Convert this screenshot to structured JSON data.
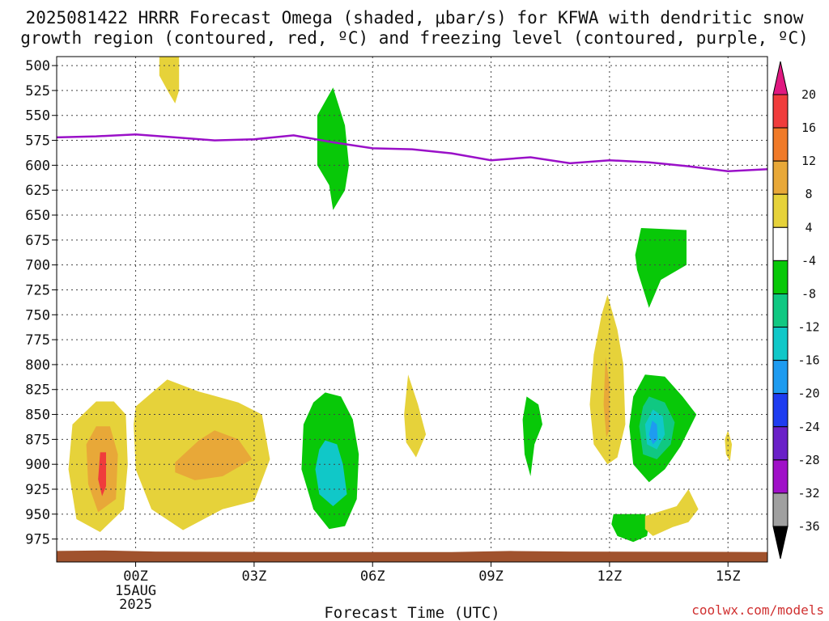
{
  "chart_data": {
    "type": "contour",
    "title_line1": "2025081422 HRRR Forecast Omega (shaded, μbar/s) for KFWA with dendritic snow",
    "title_line2": "growth region (contoured, red, ºC) and freezing level (contoured, purple, ºC)",
    "xlabel": "Forecast Time (UTC)",
    "credit": "coolwx.com/models",
    "x_range_hours": [
      -2,
      16
    ],
    "x_ticks": [
      {
        "hour": 0,
        "label": "00Z",
        "sublabels": [
          "15AUG",
          "2025"
        ]
      },
      {
        "hour": 3,
        "label": "03Z",
        "sublabels": []
      },
      {
        "hour": 6,
        "label": "06Z",
        "sublabels": []
      },
      {
        "hour": 9,
        "label": "09Z",
        "sublabels": []
      },
      {
        "hour": 12,
        "label": "12Z",
        "sublabels": []
      },
      {
        "hour": 15,
        "label": "15Z",
        "sublabels": []
      }
    ],
    "y_range_hpa": [
      491,
      998
    ],
    "y_ticks": [
      500,
      525,
      550,
      575,
      600,
      625,
      650,
      675,
      700,
      725,
      750,
      775,
      800,
      825,
      850,
      875,
      900,
      925,
      950,
      975
    ],
    "grid": true,
    "colorbar": {
      "labels": [
        "20",
        "16",
        "12",
        "8",
        "4",
        "-4",
        "-8",
        "-12",
        "-16",
        "-20",
        "-24",
        "-28",
        "-32",
        "-36"
      ],
      "colors": [
        "#f03c3c",
        "#f07a28",
        "#e8a838",
        "#e6d23a",
        "#ffffff",
        "#08c808",
        "#10c882",
        "#10c8c8",
        "#1e9bf0",
        "#1e3cf0",
        "#6a20c8",
        "#a010c8",
        "#a0a0a0"
      ],
      "top_arrow_color": "#e01880",
      "bottom_arrow_color": "#000000"
    },
    "freezing_level": {
      "color": "#9a10c8",
      "hours": [
        -2,
        -1,
        0,
        1,
        2,
        3,
        4,
        5,
        6,
        7,
        8,
        9,
        10,
        11,
        12,
        13,
        14,
        15,
        16
      ],
      "pressure_hpa": [
        572,
        571,
        569,
        572,
        575,
        574,
        570,
        577,
        583,
        584,
        588,
        595,
        592,
        598,
        595,
        597,
        601,
        606,
        604
      ]
    },
    "terrain_color": "#a0522d",
    "omega_regions": [
      {
        "color_index": 3,
        "points": [
          [
            0.6,
            491
          ],
          [
            1.1,
            491
          ],
          [
            1.1,
            525
          ],
          [
            1.0,
            538
          ],
          [
            0.85,
            528
          ],
          [
            0.6,
            510
          ]
        ]
      },
      {
        "color_index": 3,
        "points": [
          [
            -1.0,
            837
          ],
          [
            -0.55,
            837
          ],
          [
            -0.25,
            850
          ],
          [
            -0.2,
            900
          ],
          [
            -0.3,
            945
          ],
          [
            -0.9,
            968
          ],
          [
            -1.5,
            955
          ],
          [
            -1.7,
            905
          ],
          [
            -1.6,
            860
          ]
        ]
      },
      {
        "color_index": 2,
        "points": [
          [
            -1.0,
            862
          ],
          [
            -0.65,
            862
          ],
          [
            -0.45,
            890
          ],
          [
            -0.5,
            935
          ],
          [
            -0.95,
            948
          ],
          [
            -1.2,
            920
          ],
          [
            -1.25,
            880
          ]
        ]
      },
      {
        "color_index": 0,
        "points": [
          [
            -0.9,
            888
          ],
          [
            -0.75,
            888
          ],
          [
            -0.75,
            922
          ],
          [
            -0.85,
            932
          ],
          [
            -0.95,
            915
          ]
        ]
      },
      {
        "color_index": 3,
        "points": [
          [
            0.0,
            842
          ],
          [
            0.8,
            815
          ],
          [
            1.6,
            827
          ],
          [
            2.6,
            838
          ],
          [
            3.2,
            850
          ],
          [
            3.4,
            895
          ],
          [
            3.0,
            937
          ],
          [
            2.2,
            945
          ],
          [
            1.2,
            966
          ],
          [
            0.4,
            945
          ],
          [
            0.0,
            905
          ],
          [
            -0.05,
            860
          ]
        ]
      },
      {
        "color_index": 2,
        "points": [
          [
            1.0,
            898
          ],
          [
            1.6,
            876
          ],
          [
            2.0,
            866
          ],
          [
            2.6,
            875
          ],
          [
            2.95,
            895
          ],
          [
            2.2,
            912
          ],
          [
            1.5,
            916
          ],
          [
            1.0,
            908
          ]
        ]
      },
      {
        "color_index": 5,
        "points": [
          [
            5.0,
            522
          ],
          [
            5.3,
            560
          ],
          [
            5.4,
            600
          ],
          [
            5.3,
            625
          ],
          [
            5.0,
            645
          ],
          [
            4.9,
            620
          ],
          [
            4.6,
            600
          ],
          [
            4.6,
            550
          ]
        ]
      },
      {
        "color_index": 5,
        "points": [
          [
            4.8,
            828
          ],
          [
            5.2,
            832
          ],
          [
            5.5,
            855
          ],
          [
            5.65,
            890
          ],
          [
            5.6,
            935
          ],
          [
            5.3,
            962
          ],
          [
            4.9,
            965
          ],
          [
            4.5,
            945
          ],
          [
            4.2,
            905
          ],
          [
            4.25,
            860
          ],
          [
            4.5,
            838
          ]
        ]
      },
      {
        "color_index": 7,
        "points": [
          [
            4.8,
            876
          ],
          [
            5.1,
            880
          ],
          [
            5.25,
            900
          ],
          [
            5.35,
            930
          ],
          [
            5.0,
            942
          ],
          [
            4.65,
            930
          ],
          [
            4.55,
            905
          ],
          [
            4.65,
            885
          ]
        ]
      },
      {
        "color_index": 3,
        "points": [
          [
            6.9,
            810
          ],
          [
            7.15,
            840
          ],
          [
            7.35,
            870
          ],
          [
            7.1,
            893
          ],
          [
            6.85,
            878
          ],
          [
            6.8,
            850
          ]
        ]
      },
      {
        "color_index": 5,
        "points": [
          [
            9.9,
            832
          ],
          [
            10.2,
            840
          ],
          [
            10.3,
            860
          ],
          [
            10.1,
            880
          ],
          [
            10.0,
            912
          ],
          [
            9.85,
            890
          ],
          [
            9.8,
            855
          ]
        ]
      },
      {
        "color_index": 3,
        "points": [
          [
            11.95,
            730
          ],
          [
            12.2,
            765
          ],
          [
            12.35,
            800
          ],
          [
            12.4,
            860
          ],
          [
            12.2,
            893
          ],
          [
            11.95,
            900
          ],
          [
            11.6,
            880
          ],
          [
            11.5,
            840
          ],
          [
            11.6,
            790
          ],
          [
            11.8,
            750
          ]
        ]
      },
      {
        "color_index": 2,
        "points": [
          [
            11.9,
            792
          ],
          [
            12.0,
            820
          ],
          [
            12.0,
            865
          ],
          [
            11.92,
            873
          ],
          [
            11.85,
            840
          ]
        ]
      },
      {
        "color_index": 5,
        "points": [
          [
            12.8,
            663
          ],
          [
            13.95,
            665
          ],
          [
            13.95,
            700
          ],
          [
            13.3,
            715
          ],
          [
            13.0,
            743
          ],
          [
            12.7,
            705
          ],
          [
            12.65,
            690
          ]
        ]
      },
      {
        "color_index": 5,
        "points": [
          [
            12.9,
            810
          ],
          [
            13.4,
            812
          ],
          [
            13.85,
            832
          ],
          [
            14.2,
            850
          ],
          [
            13.8,
            882
          ],
          [
            13.4,
            905
          ],
          [
            13.0,
            918
          ],
          [
            12.6,
            900
          ],
          [
            12.5,
            862
          ],
          [
            12.6,
            832
          ]
        ]
      },
      {
        "color_index": 6,
        "points": [
          [
            13.0,
            832
          ],
          [
            13.4,
            838
          ],
          [
            13.65,
            858
          ],
          [
            13.55,
            880
          ],
          [
            13.2,
            895
          ],
          [
            12.85,
            890
          ],
          [
            12.75,
            862
          ],
          [
            12.85,
            842
          ]
        ]
      },
      {
        "color_index": 7,
        "points": [
          [
            13.1,
            845
          ],
          [
            13.35,
            852
          ],
          [
            13.4,
            870
          ],
          [
            13.2,
            885
          ],
          [
            12.95,
            880
          ],
          [
            12.9,
            860
          ]
        ]
      },
      {
        "color_index": 8,
        "points": [
          [
            13.08,
            856
          ],
          [
            13.2,
            860
          ],
          [
            13.22,
            875
          ],
          [
            13.1,
            880
          ],
          [
            13.0,
            870
          ]
        ]
      },
      {
        "color_index": 5,
        "points": [
          [
            12.1,
            950
          ],
          [
            12.9,
            950
          ],
          [
            13.0,
            960
          ],
          [
            12.95,
            972
          ],
          [
            12.6,
            978
          ],
          [
            12.2,
            972
          ],
          [
            12.05,
            960
          ]
        ]
      },
      {
        "color_index": 3,
        "points": [
          [
            12.9,
            952
          ],
          [
            13.7,
            942
          ],
          [
            14.0,
            925
          ],
          [
            14.25,
            945
          ],
          [
            14.0,
            958
          ],
          [
            13.6,
            963
          ],
          [
            13.1,
            972
          ],
          [
            12.9,
            965
          ]
        ]
      },
      {
        "color_index": 3,
        "points": [
          [
            15.0,
            866
          ],
          [
            15.1,
            880
          ],
          [
            15.05,
            897
          ],
          [
            14.95,
            890
          ],
          [
            14.92,
            875
          ]
        ]
      }
    ]
  }
}
